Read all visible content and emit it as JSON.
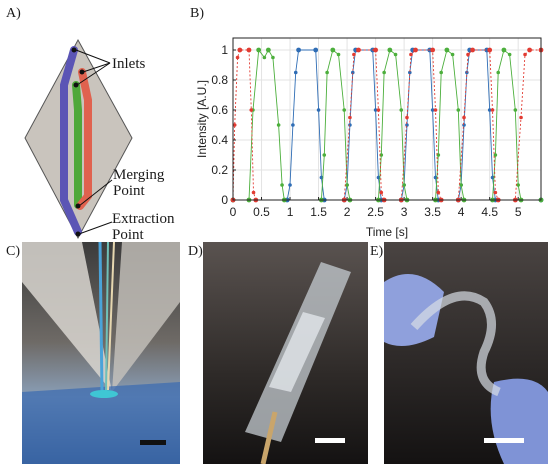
{
  "panels": {
    "a": {
      "letter": "A)"
    },
    "b": {
      "letter": "B)"
    },
    "c": {
      "letter": "C)"
    },
    "d": {
      "letter": "D)"
    },
    "e": {
      "letter": "E)"
    }
  },
  "diagram": {
    "inlets_label": "Inlets",
    "merging_label_line1": "Merging",
    "merging_label_line2": "Point",
    "extraction_label_line1": "Extraction",
    "extraction_label_line2": "Point",
    "colors": {
      "chip": "#c9c4bd",
      "blue": "#5b55b5",
      "green": "#4fa83a",
      "red": "#e0624f"
    }
  },
  "chart_data": {
    "type": "line",
    "xlabel": "Time [s]",
    "ylabel": "Intensity [A.U.]",
    "xlim": [
      0,
      5.4
    ],
    "ylim": [
      0,
      1.08
    ],
    "xticks": [
      "0",
      "0.5",
      "1",
      "1.5",
      "2",
      "2.5",
      "3",
      "3.5",
      "4",
      "4.5",
      "5"
    ],
    "xtick_values": [
      0,
      0.5,
      1,
      1.5,
      2,
      2.5,
      3,
      3.5,
      4,
      4.5,
      5
    ],
    "yticks": [
      "0",
      "0.2",
      "0.4",
      "0.6",
      "0.8",
      "1"
    ],
    "ytick_values": [
      0,
      0.2,
      0.4,
      0.6,
      0.8,
      1
    ],
    "grid": true,
    "series": [
      {
        "color": "#2f6db5",
        "points": [
          [
            0,
            0
          ],
          [
            0.95,
            0
          ],
          [
            1.0,
            0.1
          ],
          [
            1.05,
            0.5
          ],
          [
            1.1,
            0.85
          ],
          [
            1.15,
            1
          ],
          [
            1.45,
            1
          ],
          [
            1.5,
            0.6
          ],
          [
            1.55,
            0.15
          ],
          [
            1.6,
            0
          ],
          [
            1.95,
            0
          ],
          [
            2.0,
            0.1
          ],
          [
            2.05,
            0.5
          ],
          [
            2.1,
            0.85
          ],
          [
            2.15,
            1
          ],
          [
            2.45,
            1
          ],
          [
            2.5,
            0.6
          ],
          [
            2.55,
            0.15
          ],
          [
            2.6,
            0
          ],
          [
            2.95,
            0
          ],
          [
            3.0,
            0.1
          ],
          [
            3.05,
            0.5
          ],
          [
            3.1,
            0.85
          ],
          [
            3.15,
            1
          ],
          [
            3.45,
            1
          ],
          [
            3.5,
            0.6
          ],
          [
            3.55,
            0.15
          ],
          [
            3.6,
            0
          ],
          [
            3.95,
            0
          ],
          [
            4.0,
            0.1
          ],
          [
            4.05,
            0.5
          ],
          [
            4.1,
            0.85
          ],
          [
            4.15,
            1
          ],
          [
            4.45,
            1
          ],
          [
            4.5,
            0.6
          ],
          [
            4.55,
            0.15
          ],
          [
            4.6,
            0
          ],
          [
            5.4,
            0
          ]
        ]
      },
      {
        "color": "#4caf3c",
        "points": [
          [
            0,
            0
          ],
          [
            0.28,
            0
          ],
          [
            0.35,
            0.6
          ],
          [
            0.45,
            1
          ],
          [
            0.55,
            0.95
          ],
          [
            0.62,
            1
          ],
          [
            0.7,
            0.95
          ],
          [
            0.8,
            0.5
          ],
          [
            0.86,
            0.1
          ],
          [
            0.9,
            0
          ],
          [
            1.55,
            0
          ],
          [
            1.6,
            0.3
          ],
          [
            1.65,
            0.85
          ],
          [
            1.75,
            1
          ],
          [
            1.85,
            0.97
          ],
          [
            1.95,
            0.6
          ],
          [
            2.0,
            0.1
          ],
          [
            2.05,
            0
          ],
          [
            2.55,
            0
          ],
          [
            2.6,
            0.3
          ],
          [
            2.65,
            0.85
          ],
          [
            2.75,
            1
          ],
          [
            2.85,
            0.97
          ],
          [
            2.95,
            0.6
          ],
          [
            3.0,
            0.1
          ],
          [
            3.05,
            0
          ],
          [
            3.55,
            0
          ],
          [
            3.6,
            0.3
          ],
          [
            3.65,
            0.85
          ],
          [
            3.75,
            1
          ],
          [
            3.85,
            0.97
          ],
          [
            3.95,
            0.6
          ],
          [
            4.0,
            0.1
          ],
          [
            4.05,
            0
          ],
          [
            4.55,
            0
          ],
          [
            4.6,
            0.3
          ],
          [
            4.65,
            0.85
          ],
          [
            4.75,
            1
          ],
          [
            4.85,
            0.97
          ],
          [
            4.95,
            0.6
          ],
          [
            5.0,
            0.1
          ],
          [
            5.05,
            0
          ],
          [
            5.4,
            0
          ]
        ]
      },
      {
        "color": "#e23b32",
        "points": [
          [
            0,
            0
          ],
          [
            0.03,
            0.5
          ],
          [
            0.08,
            0.95
          ],
          [
            0.12,
            1
          ],
          [
            0.28,
            1
          ],
          [
            0.32,
            0.6
          ],
          [
            0.36,
            0.05
          ],
          [
            0.4,
            0
          ],
          [
            1.95,
            0
          ],
          [
            2.05,
            0.55
          ],
          [
            2.12,
            0.97
          ],
          [
            2.2,
            1
          ],
          [
            2.5,
            1
          ],
          [
            2.55,
            0.6
          ],
          [
            2.6,
            0.05
          ],
          [
            2.65,
            0
          ],
          [
            2.95,
            0
          ],
          [
            3.05,
            0.55
          ],
          [
            3.12,
            0.97
          ],
          [
            3.2,
            1
          ],
          [
            3.5,
            1
          ],
          [
            3.55,
            0.6
          ],
          [
            3.6,
            0.05
          ],
          [
            3.65,
            0
          ],
          [
            3.95,
            0
          ],
          [
            4.05,
            0.55
          ],
          [
            4.12,
            0.97
          ],
          [
            4.2,
            1
          ],
          [
            4.5,
            1
          ],
          [
            4.55,
            0.6
          ],
          [
            4.6,
            0.05
          ],
          [
            4.65,
            0
          ],
          [
            4.95,
            0
          ],
          [
            5.05,
            0.55
          ],
          [
            5.12,
            0.97
          ],
          [
            5.2,
            1
          ],
          [
            5.4,
            1
          ]
        ]
      }
    ]
  }
}
